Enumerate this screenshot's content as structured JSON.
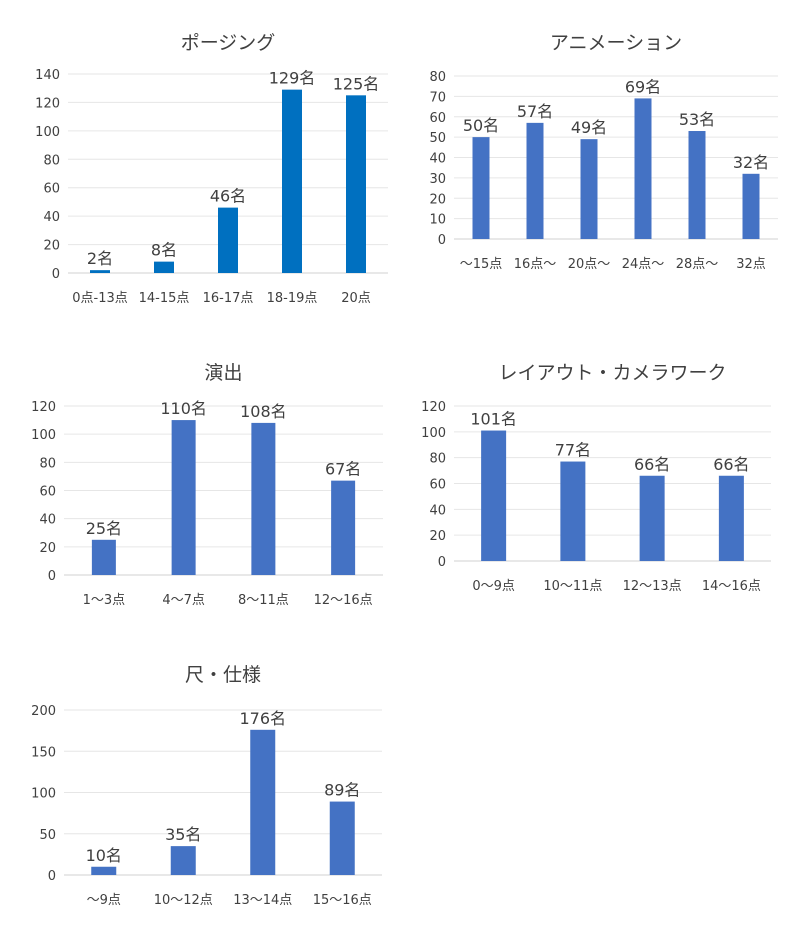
{
  "chart_data": [
    {
      "type": "bar",
      "title": "ポージング",
      "categories": [
        "0点-13点",
        "14-15点",
        "16-17点",
        "18-19点",
        "20点"
      ],
      "values": [
        2,
        8,
        46,
        129,
        125
      ],
      "data_labels": [
        "2名",
        "8名",
        "46名",
        "129名",
        "125名"
      ],
      "ylim": [
        0,
        140
      ],
      "yticks": [
        0,
        20,
        40,
        60,
        80,
        100,
        120,
        140
      ],
      "color": "#0070C0",
      "grid": true
    },
    {
      "type": "bar",
      "title": "アニメーション",
      "categories": [
        "〜15点",
        "16点〜",
        "20点〜",
        "24点〜",
        "28点〜",
        "32点"
      ],
      "values": [
        50,
        57,
        49,
        69,
        53,
        32
      ],
      "data_labels": [
        "50名",
        "57名",
        "49名",
        "69名",
        "53名",
        "32名"
      ],
      "ylim": [
        0,
        80
      ],
      "yticks": [
        0,
        10,
        20,
        30,
        40,
        50,
        60,
        70,
        80
      ],
      "color": "#4472C4",
      "grid": true
    },
    {
      "type": "bar",
      "title": "演出",
      "categories": [
        "1〜3点",
        "4〜7点",
        "8〜11点",
        "12〜16点"
      ],
      "values": [
        25,
        110,
        108,
        67
      ],
      "data_labels": [
        "25名",
        "110名",
        "108名",
        "67名"
      ],
      "ylim": [
        0,
        120
      ],
      "yticks": [
        0,
        20,
        40,
        60,
        80,
        100,
        120
      ],
      "color": "#4472C4",
      "grid": true
    },
    {
      "type": "bar",
      "title": "レイアウト・カメラワーク",
      "categories": [
        "0〜9点",
        "10〜11点",
        "12〜13点",
        "14〜16点"
      ],
      "values": [
        101,
        77,
        66,
        66
      ],
      "data_labels": [
        "101名",
        "77名",
        "66名",
        "66名"
      ],
      "ylim": [
        0,
        120
      ],
      "yticks": [
        0,
        20,
        40,
        60,
        80,
        100,
        120
      ],
      "color": "#4472C4",
      "grid": true
    },
    {
      "type": "bar",
      "title": "尺・仕様",
      "categories": [
        "〜9点",
        "10〜12点",
        "13〜14点",
        "15〜16点"
      ],
      "values": [
        10,
        35,
        176,
        89
      ],
      "data_labels": [
        "10名",
        "35名",
        "176名",
        "89名"
      ],
      "ylim": [
        0,
        200
      ],
      "yticks": [
        0,
        50,
        100,
        150,
        200
      ],
      "color": "#4472C4",
      "grid": true
    }
  ]
}
